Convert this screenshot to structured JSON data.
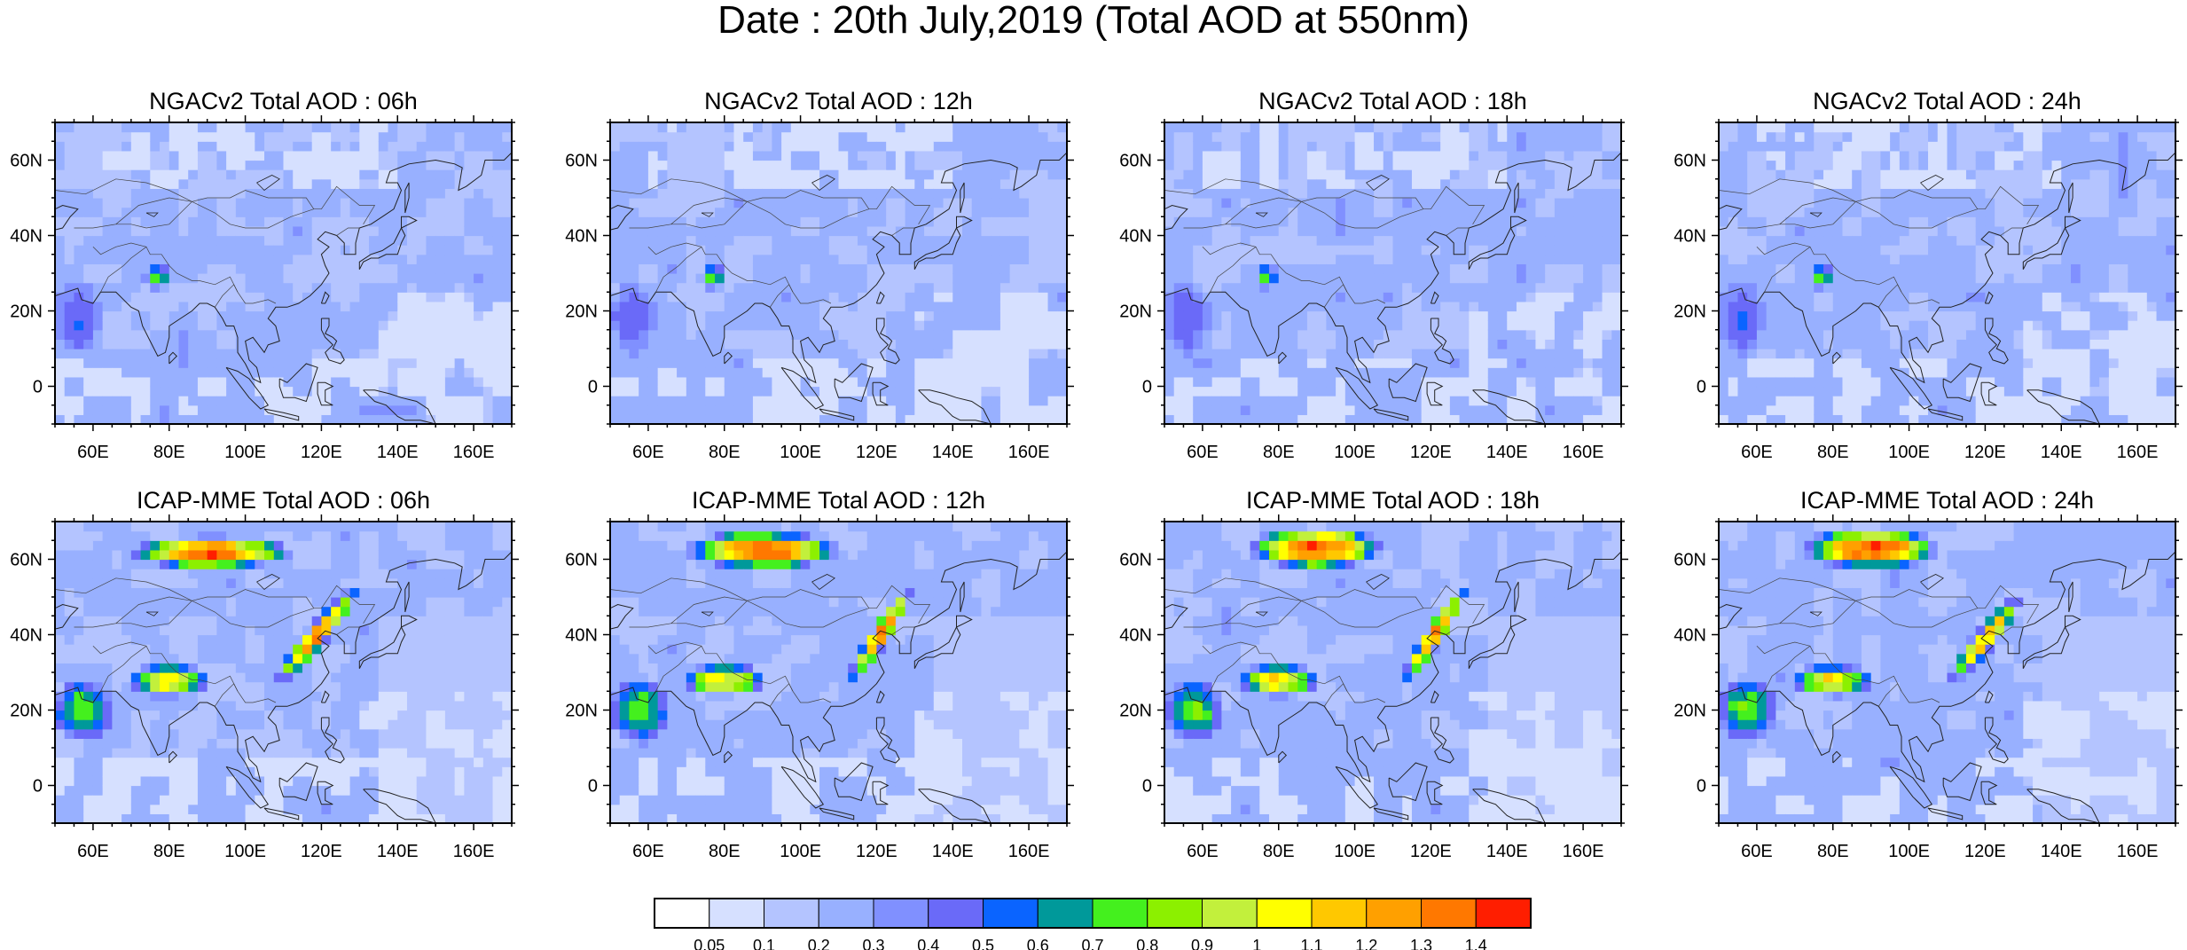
{
  "figure": {
    "title": "Date : 20th July,2019 (Total AOD at 550nm)"
  },
  "axes": {
    "lon_ticks": [
      "60E",
      "80E",
      "100E",
      "120E",
      "140E",
      "160E"
    ],
    "lat_ticks": [
      "60N",
      "40N",
      "20N",
      "0"
    ],
    "lon_range": [
      50,
      170
    ],
    "lat_range": [
      -10,
      70
    ]
  },
  "panels": [
    {
      "title": "NGACv2 Total AOD : 06h",
      "model": "NGACv2",
      "hour": "06h"
    },
    {
      "title": "NGACv2 Total AOD : 12h",
      "model": "NGACv2",
      "hour": "12h"
    },
    {
      "title": "NGACv2 Total AOD : 18h",
      "model": "NGACv2",
      "hour": "18h"
    },
    {
      "title": "NGACv2 Total AOD : 24h",
      "model": "NGACv2",
      "hour": "24h"
    },
    {
      "title": "ICAP-MME Total AOD : 06h",
      "model": "ICAP-MME",
      "hour": "06h"
    },
    {
      "title": "ICAP-MME Total AOD : 12h",
      "model": "ICAP-MME",
      "hour": "12h"
    },
    {
      "title": "ICAP-MME Total AOD : 18h",
      "model": "ICAP-MME",
      "hour": "18h"
    },
    {
      "title": "ICAP-MME Total AOD : 24h",
      "model": "ICAP-MME",
      "hour": "24h"
    }
  ],
  "colorbar": {
    "levels": [
      "0.05",
      "0.1",
      "0.2",
      "0.3",
      "0.4",
      "0.5",
      "0.6",
      "0.7",
      "0.8",
      "0.9",
      "1",
      "1.1",
      "1.2",
      "1.3",
      "1.4"
    ],
    "colors": [
      "#ffffff",
      "#d6e0ff",
      "#b4c4ff",
      "#98b0ff",
      "#8090ff",
      "#6a6af8",
      "#0a64ff",
      "#00999a",
      "#44f01e",
      "#8cf000",
      "#c2f03c",
      "#ffff00",
      "#ffc800",
      "#ffa000",
      "#ff7800",
      "#ff1e00"
    ]
  },
  "chart_data": {
    "type": "heatmap",
    "title": "Date : 20th July,2019 (Total AOD at 550nm)",
    "variable": "Total AOD at 550nm",
    "x_ticks": [
      "60E",
      "80E",
      "100E",
      "120E",
      "140E",
      "160E"
    ],
    "y_ticks": [
      "60N",
      "40N",
      "20N",
      "0"
    ],
    "xlim": [
      50,
      170
    ],
    "ylim": [
      -10,
      70
    ],
    "levels": [
      0.05,
      0.1,
      0.2,
      0.3,
      0.4,
      0.5,
      0.6,
      0.7,
      0.8,
      0.9,
      1,
      1.1,
      1.2,
      1.3,
      1.4
    ],
    "background_aod": 0.2,
    "series": [
      {
        "name": "NGACv2 Total AOD : 06h",
        "features": [
          {
            "region": "Arabian Sea / Arabia",
            "lon": [
              50,
              62
            ],
            "lat": [
              8,
              28
            ],
            "aod": 0.5
          },
          {
            "region": "Indo-Gangetic plain",
            "lon": [
              74,
              80
            ],
            "lat": [
              26,
              32
            ],
            "aod": 0.8
          },
          {
            "region": "Maritime continent",
            "lon": [
              110,
              130
            ],
            "lat": [
              -8,
              5
            ],
            "aod": 0.05
          }
        ]
      },
      {
        "name": "NGACv2 Total AOD : 12h",
        "features": [
          {
            "region": "Arabian Sea / Arabia",
            "lon": [
              50,
              62
            ],
            "lat": [
              8,
              28
            ],
            "aod": 0.5
          },
          {
            "region": "Indo-Gangetic plain",
            "lon": [
              74,
              80
            ],
            "lat": [
              26,
              32
            ],
            "aod": 0.8
          },
          {
            "region": "Maritime continent",
            "lon": [
              110,
              130
            ],
            "lat": [
              -8,
              5
            ],
            "aod": 0.05
          }
        ]
      },
      {
        "name": "NGACv2 Total AOD : 18h",
        "features": [
          {
            "region": "Arabian Sea / Arabia",
            "lon": [
              50,
              62
            ],
            "lat": [
              8,
              28
            ],
            "aod": 0.5
          },
          {
            "region": "Indo-Gangetic plain",
            "lon": [
              74,
              80
            ],
            "lat": [
              26,
              32
            ],
            "aod": 0.8
          },
          {
            "region": "Maritime continent",
            "lon": [
              110,
              130
            ],
            "lat": [
              -8,
              5
            ],
            "aod": 0.05
          }
        ]
      },
      {
        "name": "NGACv2 Total AOD : 24h",
        "features": [
          {
            "region": "Arabian Sea / Arabia",
            "lon": [
              50,
              62
            ],
            "lat": [
              8,
              28
            ],
            "aod": 0.5
          },
          {
            "region": "Indo-Gangetic plain",
            "lon": [
              74,
              80
            ],
            "lat": [
              26,
              32
            ],
            "aod": 0.8
          },
          {
            "region": "Maritime continent",
            "lon": [
              110,
              130
            ],
            "lat": [
              -8,
              5
            ],
            "aod": 0.05
          }
        ]
      },
      {
        "name": "ICAP-MME Total AOD : 06h",
        "features": [
          {
            "region": "Siberian smoke plume",
            "lon": [
              72,
              110
            ],
            "lat": [
              58,
              66
            ],
            "aod": 1.4
          },
          {
            "region": "Northeast China",
            "lon": [
              110,
              128
            ],
            "lat": [
              30,
              50
            ],
            "aod": 1.3
          },
          {
            "region": "Arabian Sea dust",
            "lon": [
              50,
              65
            ],
            "lat": [
              12,
              28
            ],
            "aod": 0.8
          },
          {
            "region": "Indo-Gangetic plain",
            "lon": [
              70,
              90
            ],
            "lat": [
              24,
              32
            ],
            "aod": 1.1
          }
        ]
      },
      {
        "name": "ICAP-MME Total AOD : 12h",
        "features": [
          {
            "region": "Siberian smoke plume",
            "lon": [
              72,
              108
            ],
            "lat": [
              58,
              67
            ],
            "aod": 1.4
          },
          {
            "region": "Northeast China",
            "lon": [
              114,
              128
            ],
            "lat": [
              30,
              50
            ],
            "aod": 1.3
          },
          {
            "region": "Arabian Sea dust",
            "lon": [
              50,
              65
            ],
            "lat": [
              12,
              28
            ],
            "aod": 0.8
          },
          {
            "region": "Indo-Gangetic plain",
            "lon": [
              70,
              90
            ],
            "lat": [
              24,
              32
            ],
            "aod": 1.1
          }
        ]
      },
      {
        "name": "ICAP-MME Total AOD : 18h",
        "features": [
          {
            "region": "Siberian smoke plume",
            "lon": [
              74,
              106
            ],
            "lat": [
              58,
              68
            ],
            "aod": 1.4
          },
          {
            "region": "Northeast China",
            "lon": [
              114,
              128
            ],
            "lat": [
              30,
              50
            ],
            "aod": 1.3
          },
          {
            "region": "Arabian Sea dust",
            "lon": [
              50,
              65
            ],
            "lat": [
              12,
              28
            ],
            "aod": 0.8
          },
          {
            "region": "Indo-Gangetic plain",
            "lon": [
              70,
              90
            ],
            "lat": [
              24,
              32
            ],
            "aod": 1.1
          }
        ]
      },
      {
        "name": "ICAP-MME Total AOD : 24h",
        "features": [
          {
            "region": "Siberian smoke plume",
            "lon": [
              74,
              106
            ],
            "lat": [
              58,
              68
            ],
            "aod": 1.4
          },
          {
            "region": "Northeast China",
            "lon": [
              112,
              128
            ],
            "lat": [
              30,
              48
            ],
            "aod": 1.2
          },
          {
            "region": "Arabian Sea dust",
            "lon": [
              50,
              65
            ],
            "lat": [
              12,
              28
            ],
            "aod": 0.8
          },
          {
            "region": "Indo-Gangetic plain",
            "lon": [
              70,
              90
            ],
            "lat": [
              24,
              32
            ],
            "aod": 1.1
          }
        ]
      }
    ],
    "grid": false,
    "legend": "bottom"
  }
}
